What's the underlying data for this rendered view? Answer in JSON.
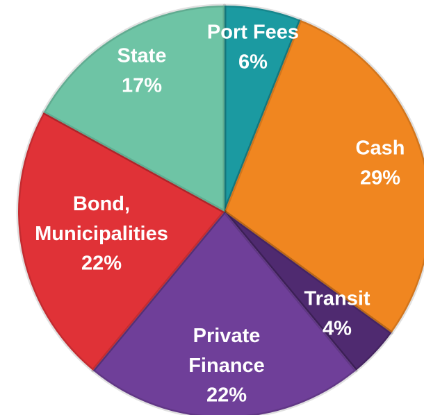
{
  "chart_data": {
    "type": "pie",
    "categories": [
      "Port Fees",
      "Cash",
      "Transit",
      "Private Finance",
      "Bond, Municipalities",
      "State"
    ],
    "values": [
      6,
      29,
      4,
      22,
      22,
      17
    ],
    "value_labels": [
      "6%",
      "29%",
      "4%",
      "22%",
      "22%",
      "17%"
    ],
    "colors": [
      "#1b9aa1",
      "#f08620",
      "#4f2a70",
      "#6f3f99",
      "#e03237",
      "#6ec4a5"
    ]
  }
}
